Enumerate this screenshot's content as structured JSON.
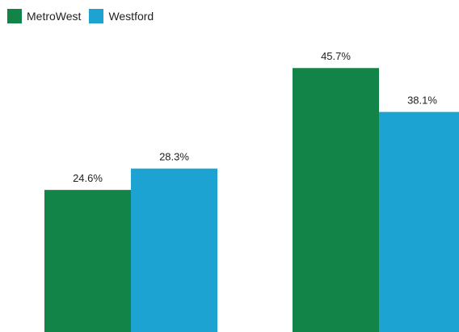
{
  "legend": {
    "items": [
      {
        "label": "MetroWest",
        "color": "#138447"
      },
      {
        "label": "Westford",
        "color": "#1ca3d1"
      }
    ]
  },
  "chart_data": {
    "type": "bar",
    "categories": [
      "",
      ""
    ],
    "series": [
      {
        "name": "MetroWest",
        "values": [
          24.6,
          45.7
        ],
        "color": "#138447"
      },
      {
        "name": "Westford",
        "values": [
          28.3,
          38.1
        ],
        "color": "#1ca3d1"
      }
    ],
    "value_labels": {
      "MetroWest": [
        "24.6%",
        "45.7%"
      ],
      "Westford": [
        "28.3%",
        "38.1%"
      ]
    },
    "unit": "%",
    "ylim": [
      0,
      50
    ],
    "grid": false,
    "legend_position": "top-left",
    "xlabel": "",
    "ylabel": ""
  }
}
